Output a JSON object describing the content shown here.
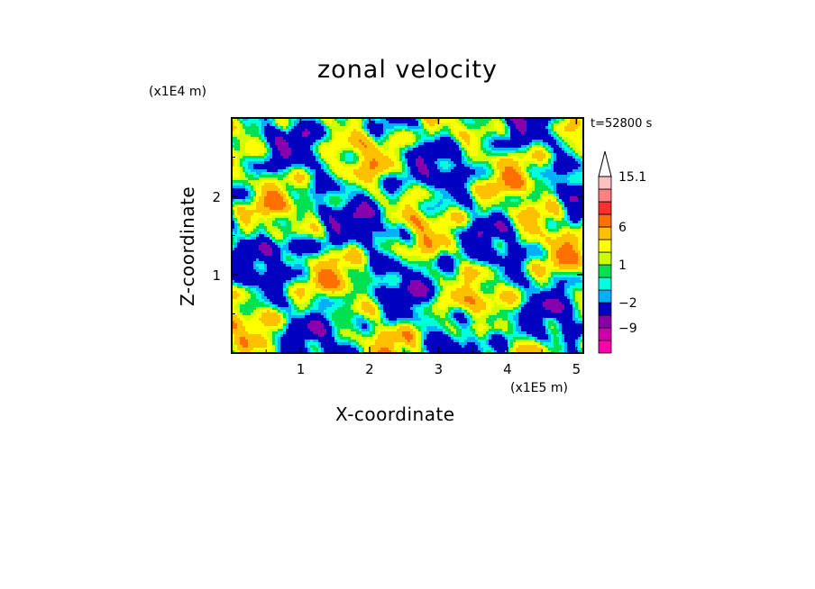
{
  "chart_data": {
    "type": "heatmap",
    "title": "zonal velocity",
    "xlabel": "X-coordinate",
    "ylabel": "Z-coordinate",
    "x_unit": "(x1E5 m)",
    "y_unit": "(x1E4 m)",
    "timestamp": "t=52800 s",
    "xlim": [
      0,
      5.1
    ],
    "ylim": [
      0,
      3
    ],
    "x_ticks": [
      1,
      2,
      3,
      4,
      5
    ],
    "x_tick_labels": [
      "1",
      "2",
      "3",
      "4",
      "5"
    ],
    "y_ticks": [
      1,
      2
    ],
    "y_tick_labels": [
      "1",
      "2"
    ],
    "colorbar": {
      "levels": [
        -15,
        -12,
        -9,
        -6,
        -2,
        -1,
        0,
        1,
        2,
        3.5,
        6,
        9,
        12,
        15.1
      ],
      "colors": [
        "#ff00aa",
        "#cc00aa",
        "#8800aa",
        "#0000c0",
        "#00b0ff",
        "#00ffdd",
        "#00e050",
        "#ccff00",
        "#ffff00",
        "#ffc000",
        "#ff7000",
        "#ff3030",
        "#ff8080",
        "#ffc0c0"
      ],
      "labeled_values": [
        "-9",
        "-2",
        "1",
        "6",
        "15.1"
      ],
      "extend": "max"
    },
    "grid": false,
    "legend": "right-colorbar"
  }
}
